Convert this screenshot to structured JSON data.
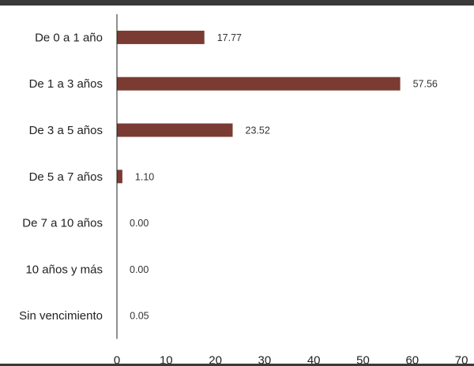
{
  "chart_data": {
    "type": "bar",
    "orientation": "horizontal",
    "categories": [
      "De 0 a 1 año",
      "De 1 a 3 años",
      "De 3 a 5 años",
      "De 5 a 7 años",
      "De 7 a 10 años",
      "10 años y más",
      "Sin vencimiento"
    ],
    "values": [
      17.77,
      57.56,
      23.52,
      1.1,
      0.0,
      0.0,
      0.05
    ],
    "value_labels": [
      "17.77",
      "57.56",
      "23.52",
      "1.10",
      "0.00",
      "0.00",
      "0.05"
    ],
    "xlim": [
      0,
      70
    ],
    "x_ticks": [
      0,
      10,
      20,
      30,
      40,
      50,
      60,
      70
    ],
    "title": "",
    "xlabel": "",
    "ylabel": "",
    "grid": false,
    "legend": "none",
    "bar_color": "#7a3b33"
  }
}
